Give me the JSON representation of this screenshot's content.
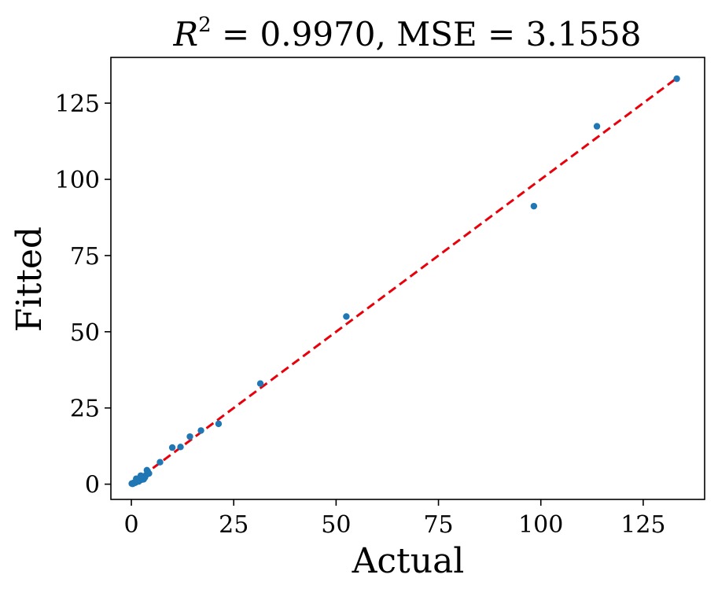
{
  "chart_data": {
    "type": "scatter",
    "title_parts": {
      "r": "R",
      "sup": "2",
      "rest": " = 0.9970, MSE = 3.1558"
    },
    "xlabel": "Actual",
    "ylabel": "Fitted",
    "xlim": [
      -5,
      140
    ],
    "ylim": [
      -5,
      140
    ],
    "xticks": [
      0,
      25,
      50,
      75,
      100,
      125
    ],
    "yticks": [
      0,
      25,
      50,
      75,
      100,
      125
    ],
    "grid": false,
    "point_color": "#1f77b4",
    "fit_line": {
      "x": [
        0,
        133
      ],
      "y": [
        0,
        133
      ],
      "color": "#e8000b",
      "style": "dashed"
    },
    "series": [
      {
        "x": [
          0.1,
          0.3,
          0.5,
          0.8,
          1.0,
          1.2,
          1.5,
          1.8,
          2.0,
          2.3,
          2.6,
          3.0,
          3.3,
          3.6,
          4.0,
          4.3,
          0.6,
          1.4,
          2.8,
          3.8,
          7.0,
          10.0,
          12.0,
          14.3,
          17.0,
          21.3,
          31.5,
          52.5,
          98.3,
          113.7,
          133.2
        ],
        "y": [
          0.2,
          0.1,
          0.4,
          0.6,
          0.5,
          1.8,
          1.0,
          0.9,
          1.2,
          2.8,
          1.5,
          1.6,
          2.2,
          3.0,
          4.2,
          3.5,
          0.3,
          1.3,
          2.0,
          4.6,
          7.2,
          12.0,
          12.2,
          15.6,
          17.6,
          19.8,
          33.0,
          55.0,
          91.2,
          117.4,
          133.0
        ]
      }
    ]
  }
}
